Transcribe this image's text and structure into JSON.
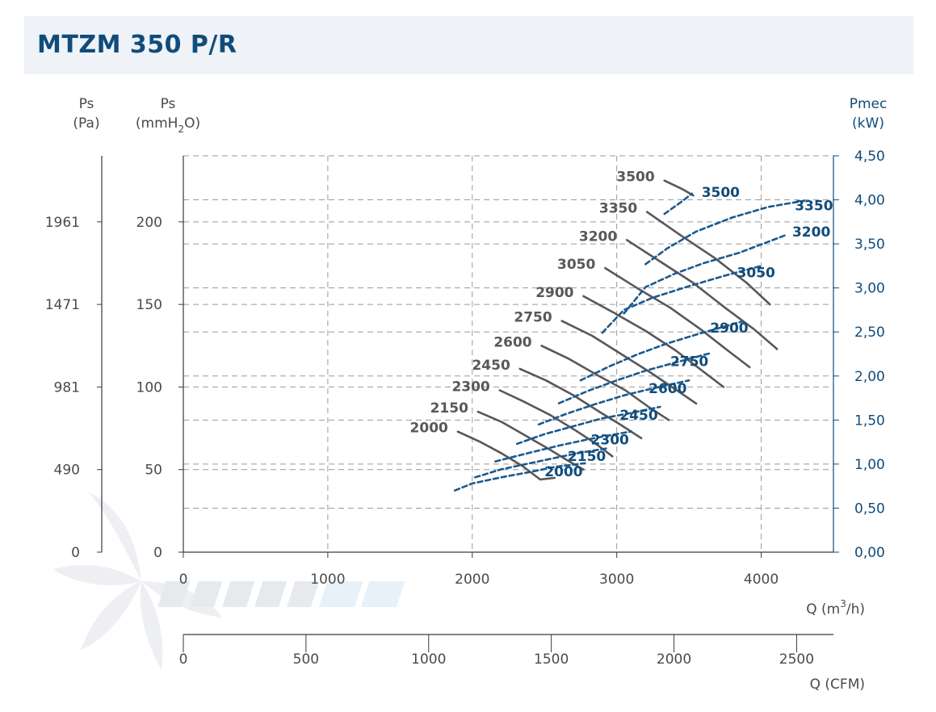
{
  "header": {
    "title": "MTZM 350 P/R"
  },
  "chart_data": {
    "type": "line",
    "title": "MTZM 350 P/R",
    "x_primary": {
      "label": "Q (m³/h)",
      "label_base": "Q (m",
      "label_sup": "3",
      "label_end": "/h)",
      "range": [
        0,
        4500
      ],
      "ticks": [
        "0",
        "1000",
        "2000",
        "3000",
        "4000"
      ],
      "tick_values": [
        0,
        1000,
        2000,
        3000,
        4000
      ]
    },
    "x_secondary": {
      "label": "Q (CFM)",
      "range": [
        0,
        2650
      ],
      "ticks": [
        "0",
        "500",
        "1000",
        "1500",
        "2000",
        "2500"
      ],
      "tick_values": [
        0,
        500,
        1000,
        1500,
        2000,
        2500
      ]
    },
    "y_left_pa": {
      "label_line1": "Ps",
      "label_line2": "(Pa)",
      "ticks": [
        "0",
        "490",
        "981",
        "1471",
        "1961"
      ]
    },
    "y_left_mmh2o": {
      "label_line1": "Ps",
      "label_line2_base": "(mmH",
      "label_line2_sub": "2",
      "label_line2_end": "O)",
      "range": [
        0,
        240
      ],
      "ticks": [
        "0",
        "50",
        "100",
        "150",
        "200"
      ],
      "tick_values": [
        0,
        50,
        100,
        150,
        200
      ]
    },
    "y_right": {
      "label_line1": "Pmec",
      "label_line2": "(kW)",
      "range": [
        0,
        4.5
      ],
      "ticks": [
        "0,00",
        "0,50",
        "1,00",
        "1,50",
        "2,00",
        "2,50",
        "3,00",
        "3,50",
        "4,00",
        "4,50"
      ],
      "tick_values": [
        0,
        0.5,
        1.0,
        1.5,
        2.0,
        2.5,
        3.0,
        3.5,
        4.0,
        4.5
      ]
    },
    "grid": true,
    "pressure_series": [
      {
        "name": "2000",
        "points": [
          [
            1900,
            73
          ],
          [
            2050,
            67
          ],
          [
            2200,
            60
          ],
          [
            2350,
            52
          ],
          [
            2470,
            44
          ],
          [
            2570,
            45
          ]
        ]
      },
      {
        "name": "2150",
        "points": [
          [
            2040,
            85
          ],
          [
            2200,
            79
          ],
          [
            2360,
            71
          ],
          [
            2520,
            63
          ],
          [
            2650,
            56
          ],
          [
            2770,
            50
          ]
        ]
      },
      {
        "name": "2300",
        "points": [
          [
            2190,
            98
          ],
          [
            2360,
            91
          ],
          [
            2540,
            83
          ],
          [
            2710,
            74
          ],
          [
            2850,
            66
          ],
          [
            2970,
            58
          ]
        ]
      },
      {
        "name": "2450",
        "points": [
          [
            2330,
            111
          ],
          [
            2510,
            104
          ],
          [
            2700,
            95
          ],
          [
            2880,
            85
          ],
          [
            3030,
            77
          ],
          [
            3170,
            69
          ]
        ]
      },
      {
        "name": "2600",
        "points": [
          [
            2480,
            125
          ],
          [
            2670,
            117
          ],
          [
            2870,
            107
          ],
          [
            3060,
            98
          ],
          [
            3220,
            88
          ],
          [
            3360,
            80
          ]
        ]
      },
      {
        "name": "2750",
        "points": [
          [
            2620,
            140
          ],
          [
            2830,
            131
          ],
          [
            3030,
            120
          ],
          [
            3230,
            109
          ],
          [
            3400,
            99
          ],
          [
            3550,
            90
          ]
        ]
      },
      {
        "name": "2900",
        "points": [
          [
            2770,
            155
          ],
          [
            2980,
            145
          ],
          [
            3200,
            134
          ],
          [
            3410,
            122
          ],
          [
            3590,
            110
          ],
          [
            3740,
            100
          ]
        ]
      },
      {
        "name": "3050",
        "points": [
          [
            2920,
            172
          ],
          [
            3140,
            160
          ],
          [
            3370,
            148
          ],
          [
            3580,
            135
          ],
          [
            3770,
            122
          ],
          [
            3920,
            112
          ]
        ]
      },
      {
        "name": "3200",
        "points": [
          [
            3070,
            189
          ],
          [
            3300,
            176
          ],
          [
            3530,
            163
          ],
          [
            3750,
            148
          ],
          [
            3950,
            135
          ],
          [
            4110,
            123
          ]
        ]
      },
      {
        "name": "3350",
        "points": [
          [
            3210,
            206
          ],
          [
            3440,
            192
          ],
          [
            3680,
            178
          ],
          [
            3900,
            163
          ],
          [
            4060,
            150
          ]
        ]
      },
      {
        "name": "3500",
        "points": [
          [
            3330,
            225
          ],
          [
            3450,
            220
          ],
          [
            3530,
            216
          ]
        ]
      }
    ],
    "power_series": [
      {
        "name": "2000",
        "points": [
          [
            1880,
            0.7
          ],
          [
            2000,
            0.78
          ],
          [
            2200,
            0.85
          ],
          [
            2400,
            0.91
          ],
          [
            2580,
            0.97
          ],
          [
            2780,
            1.01
          ]
        ]
      },
      {
        "name": "2150",
        "points": [
          [
            2020,
            0.85
          ],
          [
            2200,
            0.94
          ],
          [
            2400,
            1.01
          ],
          [
            2600,
            1.08
          ],
          [
            2750,
            1.13
          ],
          [
            2940,
            1.18
          ]
        ]
      },
      {
        "name": "2300",
        "points": [
          [
            2160,
            1.03
          ],
          [
            2400,
            1.13
          ],
          [
            2600,
            1.21
          ],
          [
            2800,
            1.28
          ],
          [
            2960,
            1.33
          ],
          [
            3100,
            1.37
          ]
        ]
      },
      {
        "name": "2450",
        "points": [
          [
            2310,
            1.23
          ],
          [
            2500,
            1.34
          ],
          [
            2700,
            1.43
          ],
          [
            2900,
            1.52
          ],
          [
            3100,
            1.58
          ],
          [
            3300,
            1.65
          ]
        ]
      },
      {
        "name": "2600",
        "points": [
          [
            2460,
            1.45
          ],
          [
            2650,
            1.57
          ],
          [
            2850,
            1.68
          ],
          [
            3050,
            1.78
          ],
          [
            3250,
            1.86
          ],
          [
            3500,
            1.95
          ]
        ]
      },
      {
        "name": "2750",
        "points": [
          [
            2600,
            1.69
          ],
          [
            2800,
            1.83
          ],
          [
            3000,
            1.95
          ],
          [
            3200,
            2.06
          ],
          [
            3400,
            2.15
          ],
          [
            3650,
            2.26
          ]
        ]
      },
      {
        "name": "2900",
        "points": [
          [
            2750,
            1.95
          ],
          [
            2950,
            2.11
          ],
          [
            3150,
            2.25
          ],
          [
            3350,
            2.37
          ],
          [
            3550,
            2.47
          ],
          [
            3870,
            2.62
          ]
        ]
      },
      {
        "name": "3050",
        "points": [
          [
            2900,
            2.49
          ],
          [
            3050,
            2.75
          ],
          [
            3250,
            2.89
          ],
          [
            3500,
            3.02
          ],
          [
            3750,
            3.14
          ],
          [
            4000,
            3.25
          ]
        ]
      },
      {
        "name": "3200",
        "points": [
          [
            3050,
            2.71
          ],
          [
            3200,
            3.01
          ],
          [
            3400,
            3.16
          ],
          [
            3600,
            3.28
          ],
          [
            3850,
            3.4
          ],
          [
            4170,
            3.6
          ]
        ]
      },
      {
        "name": "3350",
        "points": [
          [
            3200,
            3.27
          ],
          [
            3350,
            3.45
          ],
          [
            3550,
            3.64
          ],
          [
            3800,
            3.8
          ],
          [
            4050,
            3.92
          ],
          [
            4300,
            3.99
          ]
        ]
      },
      {
        "name": "3500",
        "points": [
          [
            3330,
            3.84
          ],
          [
            3450,
            3.98
          ],
          [
            3520,
            4.07
          ]
        ]
      }
    ]
  }
}
